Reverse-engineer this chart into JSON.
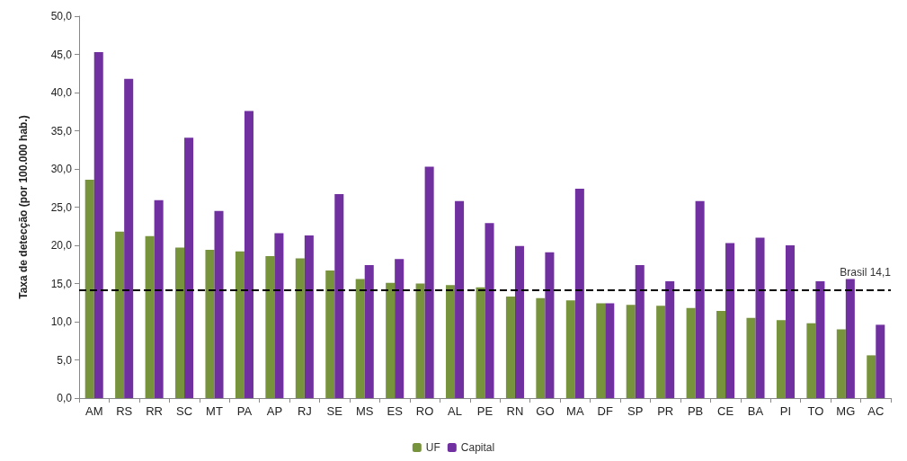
{
  "chart_data": {
    "type": "bar",
    "ylabel": "Taxa de detecção (por 100.000 hab.)",
    "categories": [
      "AM",
      "RS",
      "RR",
      "SC",
      "MT",
      "PA",
      "AP",
      "RJ",
      "SE",
      "MS",
      "ES",
      "RO",
      "AL",
      "PE",
      "RN",
      "GO",
      "MA",
      "DF",
      "SP",
      "PR",
      "PB",
      "CE",
      "BA",
      "PI",
      "TO",
      "MG",
      "AC"
    ],
    "series": [
      {
        "name": "UF",
        "color": "#77933c",
        "values": [
          28.6,
          21.8,
          21.2,
          19.7,
          19.4,
          19.2,
          18.6,
          18.3,
          16.7,
          15.6,
          15.1,
          15.0,
          14.8,
          14.5,
          13.3,
          13.1,
          12.8,
          12.4,
          12.2,
          12.1,
          11.8,
          11.4,
          10.5,
          10.2,
          9.8,
          9.0,
          5.6
        ]
      },
      {
        "name": "Capital",
        "color": "#7030a0",
        "values": [
          45.3,
          41.8,
          25.9,
          34.1,
          24.5,
          37.6,
          21.6,
          21.3,
          26.7,
          17.4,
          18.2,
          30.3,
          25.8,
          22.9,
          19.9,
          19.1,
          27.4,
          12.4,
          17.4,
          15.3,
          25.8,
          20.3,
          21.0,
          20.0,
          15.3,
          15.6,
          9.6
        ]
      }
    ],
    "ylim": [
      0,
      50
    ],
    "yticks": [
      {
        "value": 0,
        "label": "0,0"
      },
      {
        "value": 5,
        "label": "5,0"
      },
      {
        "value": 10,
        "label": "10,0"
      },
      {
        "value": 15,
        "label": "15,0"
      },
      {
        "value": 20,
        "label": "20,0"
      },
      {
        "value": 25,
        "label": "25,0"
      },
      {
        "value": 30,
        "label": "30,0"
      },
      {
        "value": 35,
        "label": "35,0"
      },
      {
        "value": 40,
        "label": "40,0"
      },
      {
        "value": 45,
        "label": "45,0"
      },
      {
        "value": 50,
        "label": "50,0"
      }
    ],
    "ref_lines": [
      {
        "axis": "y",
        "value": 14.1,
        "label": "Brasil 14,1",
        "color": "#000000",
        "line_style": "dashed"
      }
    ],
    "grid": false,
    "legend": "bottom"
  }
}
